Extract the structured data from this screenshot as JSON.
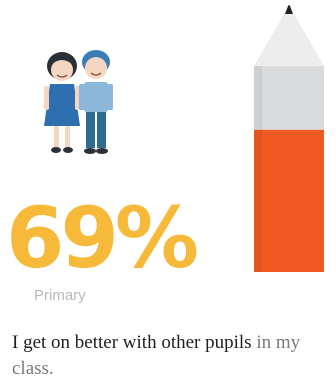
{
  "stat": {
    "value": "69%",
    "fraction": 0.69,
    "level": "Primary"
  },
  "statement": {
    "strong": "I get on better with other pupils",
    "rest": " in my class."
  },
  "illustrations": {
    "children_icon": "two-children-icon",
    "pencil_icon": "pencil-gauge-icon"
  },
  "colors": {
    "percent": "#f6b93a",
    "pencil_fill": "#f05a22",
    "pencil_empty": "#d9dbdc",
    "label": "#b9b9b9"
  }
}
